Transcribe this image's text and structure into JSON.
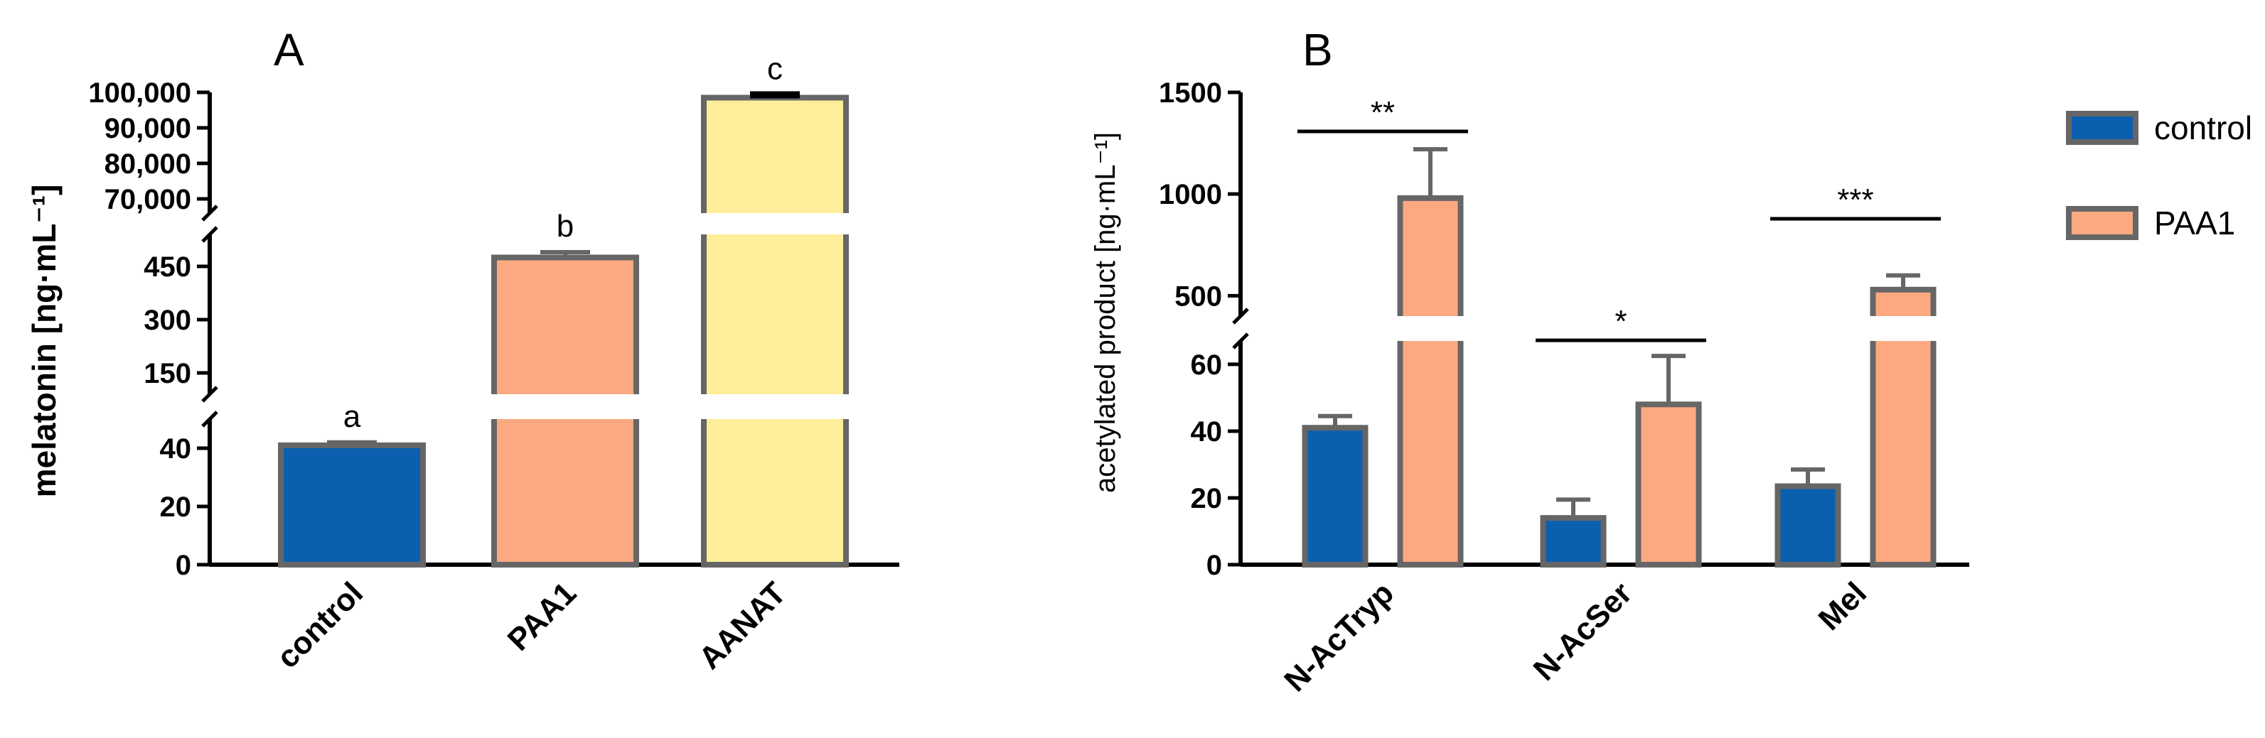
{
  "colors": {
    "control": "#0b5fae",
    "PAA1": "#fca982",
    "AANAT": "#ffee99",
    "edge": "#666666"
  },
  "chart_data": [
    {
      "panel": "A",
      "type": "bar",
      "ylabel": "melatonin [ng·mL⁻¹]",
      "categories": [
        "control",
        "PAA1",
        "AANAT"
      ],
      "values": [
        41,
        475,
        98500
      ],
      "errors": [
        1,
        15,
        800
      ],
      "colors": [
        "#0b5fae",
        "#fca982",
        "#ffee99"
      ],
      "sig_letters": [
        "a",
        "b",
        "c"
      ],
      "axis_segments": [
        {
          "range": [
            0,
            50
          ],
          "ticks": [
            0,
            20,
            40
          ],
          "tick_labels": [
            "0",
            "20",
            "40"
          ]
        },
        {
          "range": [
            90,
            540
          ],
          "ticks": [
            150,
            300,
            450
          ],
          "tick_labels": [
            "150",
            "300",
            "450"
          ]
        },
        {
          "range": [
            66000,
            100000
          ],
          "ticks": [
            70000,
            80000,
            90000,
            100000
          ],
          "tick_labels": [
            "70,000",
            "80,000",
            "90,000",
            "100,000"
          ]
        }
      ]
    },
    {
      "panel": "B",
      "type": "bar",
      "ylabel": "acetylated product  [ng·mL⁻¹]",
      "categories": [
        "N-AcTryp",
        "N-AcSer",
        "Mel"
      ],
      "series": [
        {
          "name": "control",
          "values": [
            41,
            14,
            23.5
          ],
          "errors": [
            3.5,
            5.5,
            5
          ],
          "color": "#0b5fae"
        },
        {
          "name": "PAA1",
          "values": [
            980,
            48,
            530
          ],
          "errors": [
            240,
            14.5,
            70
          ],
          "color": "#fca982"
        }
      ],
      "axis_segments": [
        {
          "range": [
            0,
            67
          ],
          "ticks": [
            0,
            20,
            40,
            60
          ],
          "tick_labels": [
            "0",
            "20",
            "40",
            "60"
          ]
        },
        {
          "range": [
            400,
            1500
          ],
          "ticks": [
            500,
            1000,
            1500
          ],
          "tick_labels": [
            "500",
            "1000",
            "1500"
          ]
        }
      ],
      "significance": [
        "**",
        "*",
        "***"
      ],
      "legend": [
        "control",
        "PAA1"
      ],
      "legend_position": "top-right"
    }
  ]
}
